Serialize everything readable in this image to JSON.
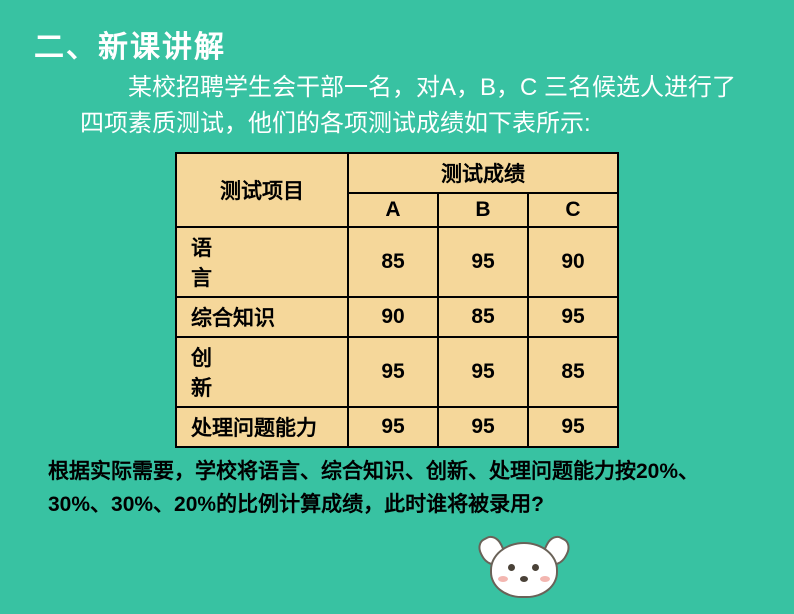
{
  "heading": "二、新课讲解",
  "intro": "某校招聘学生会干部一名，对A，B，C  三名候选人进行了四项素质测试，他们的各项测试成绩如下表所示:",
  "table": {
    "proj_header": "测试项目",
    "score_header": "测试成绩",
    "col_labels": [
      "A",
      "B",
      "C"
    ],
    "rows": [
      {
        "label_html": "语　　言",
        "values": [
          85,
          95,
          90
        ]
      },
      {
        "label_html": "综合知识",
        "values": [
          90,
          85,
          95
        ]
      },
      {
        "label_html": "创　　新",
        "values": [
          95,
          95,
          85
        ]
      },
      {
        "label_html": "处理问题能力",
        "values": [
          95,
          95,
          95
        ]
      }
    ],
    "col_widths": {
      "proj": 172,
      "score": 90
    },
    "colors": {
      "cell_bg": "#f5d79a",
      "border": "#000000",
      "text": "#000000"
    },
    "font": {
      "size_pt": 16,
      "weight": "bold"
    }
  },
  "footer": "根据实际需要，学校将语言、综合知识、创新、处理问题能力按20%、30%、30%、20%的比例计算成绩，此时谁将被录用?",
  "colors": {
    "page_bg": "#38c2a2",
    "heading_text": "#ffffff",
    "intro_text": "#ffffff",
    "footer_text": "#000000"
  },
  "decoration": {
    "name": "cartoon-dog"
  }
}
